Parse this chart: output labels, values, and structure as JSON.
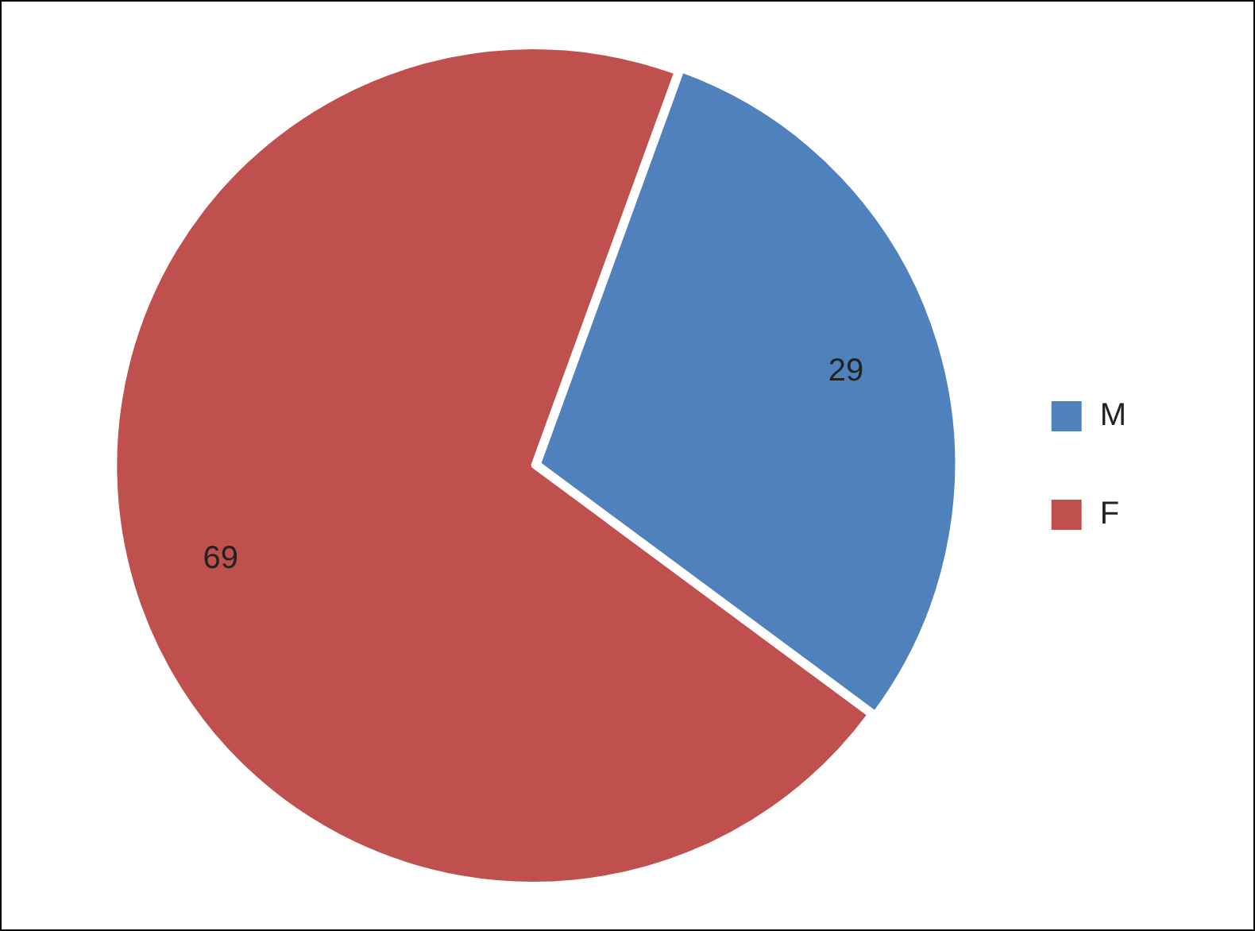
{
  "chart_data": {
    "type": "pie",
    "categories": [
      "M",
      "F"
    ],
    "values": [
      29,
      69
    ],
    "colors": [
      "#4f81bd",
      "#c0504d"
    ],
    "legend": "right",
    "data_labels": true
  }
}
